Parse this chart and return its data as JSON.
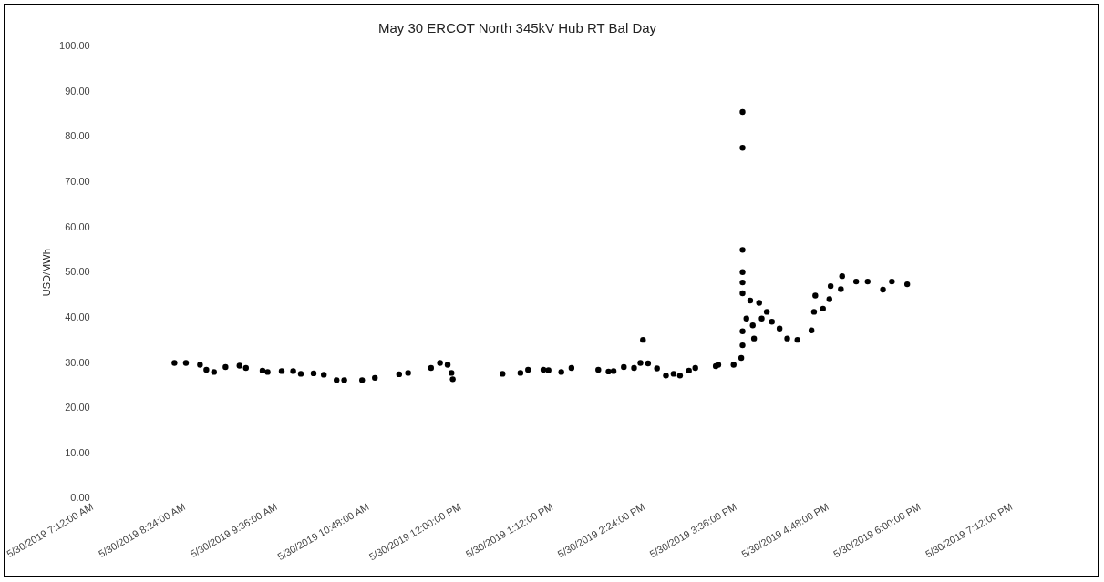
{
  "chart_data": {
    "type": "scatter",
    "title": "May 30 ERCOT North 345kV Hub RT Bal Day",
    "ylabel": "USD/MWh",
    "x": [
      "2019-05-30T08:16",
      "2019-05-30T08:25",
      "2019-05-30T08:36",
      "2019-05-30T08:41",
      "2019-05-30T08:47",
      "2019-05-30T08:56",
      "2019-05-30T09:07",
      "2019-05-30T09:12",
      "2019-05-30T09:25",
      "2019-05-30T09:29",
      "2019-05-30T09:40",
      "2019-05-30T09:49",
      "2019-05-30T09:55",
      "2019-05-30T10:05",
      "2019-05-30T10:13",
      "2019-05-30T10:23",
      "2019-05-30T10:29",
      "2019-05-30T10:43",
      "2019-05-30T10:53",
      "2019-05-30T11:12",
      "2019-05-30T11:19",
      "2019-05-30T11:37",
      "2019-05-30T11:44",
      "2019-05-30T11:50",
      "2019-05-30T11:53",
      "2019-05-30T11:54",
      "2019-05-30T12:33",
      "2019-05-30T12:47",
      "2019-05-30T12:53",
      "2019-05-30T13:05",
      "2019-05-30T13:09",
      "2019-05-30T13:19",
      "2019-05-30T13:27",
      "2019-05-30T13:48",
      "2019-05-30T13:56",
      "2019-05-30T14:00",
      "2019-05-30T14:08",
      "2019-05-30T14:16",
      "2019-05-30T14:21",
      "2019-05-30T14:23",
      "2019-05-30T14:27",
      "2019-05-30T14:34",
      "2019-05-30T14:41",
      "2019-05-30T14:47",
      "2019-05-30T14:52",
      "2019-05-30T14:59",
      "2019-05-30T15:04",
      "2019-05-30T15:20",
      "2019-05-30T15:22",
      "2019-05-30T15:34",
      "2019-05-30T15:40",
      "2019-05-30T15:41",
      "2019-05-30T15:41",
      "2019-05-30T15:41",
      "2019-05-30T15:41",
      "2019-05-30T15:41",
      "2019-05-30T15:41",
      "2019-05-30T15:41",
      "2019-05-30T15:41",
      "2019-05-30T15:47",
      "2019-05-30T15:54",
      "2019-05-30T15:44",
      "2019-05-30T15:49",
      "2019-05-30T15:50",
      "2019-05-30T15:56",
      "2019-05-30T16:00",
      "2019-05-30T16:04",
      "2019-05-30T16:10",
      "2019-05-30T16:16",
      "2019-05-30T16:24",
      "2019-05-30T16:35",
      "2019-05-30T16:37",
      "2019-05-30T16:38",
      "2019-05-30T16:44",
      "2019-05-30T16:49",
      "2019-05-30T16:50",
      "2019-05-30T16:58",
      "2019-05-30T16:59",
      "2019-05-30T17:10",
      "2019-05-30T17:19",
      "2019-05-30T17:31",
      "2019-05-30T17:38",
      "2019-05-30T17:50"
    ],
    "series": [
      {
        "color": "#000000",
        "values": [
          30.0,
          30.0,
          29.6,
          28.5,
          28.0,
          29.1,
          29.4,
          28.9,
          28.3,
          28.0,
          28.2,
          28.2,
          27.6,
          27.7,
          27.4,
          26.2,
          26.2,
          26.2,
          26.7,
          27.5,
          27.8,
          28.9,
          30.0,
          29.6,
          27.8,
          26.4,
          27.6,
          27.8,
          28.5,
          28.5,
          28.4,
          28.0,
          28.9,
          28.5,
          28.1,
          28.2,
          29.1,
          28.9,
          30.0,
          35.1,
          29.9,
          28.8,
          27.2,
          27.6,
          27.2,
          28.3,
          28.9,
          29.3,
          29.6,
          29.6,
          31.1,
          33.9,
          37.0,
          85.5,
          77.6,
          55.0,
          50.1,
          47.8,
          45.4,
          43.8,
          43.3,
          39.8,
          38.3,
          35.4,
          39.8,
          41.3,
          39.1,
          37.6,
          35.4,
          35.1,
          37.2,
          41.3,
          44.9,
          42.0,
          44.1,
          47.0,
          46.3,
          49.2,
          48.0,
          48.0,
          46.2,
          48.0,
          47.4
        ]
      }
    ],
    "marker": "circle",
    "xlim": [
      "2019-05-30T07:12",
      "2019-05-30T19:12"
    ],
    "xticks": [
      {
        "value": "2019-05-30T07:12",
        "label": "5/30/2019 7:12:00 AM"
      },
      {
        "value": "2019-05-30T08:24",
        "label": "5/30/2019 8:24:00 AM"
      },
      {
        "value": "2019-05-30T09:36",
        "label": "5/30/2019 9:36:00 AM"
      },
      {
        "value": "2019-05-30T10:48",
        "label": "5/30/2019 10:48:00 AM"
      },
      {
        "value": "2019-05-30T12:00",
        "label": "5/30/2019 12:00:00 PM"
      },
      {
        "value": "2019-05-30T13:12",
        "label": "5/30/2019 1:12:00 PM"
      },
      {
        "value": "2019-05-30T14:24",
        "label": "5/30/2019 2:24:00 PM"
      },
      {
        "value": "2019-05-30T15:36",
        "label": "5/30/2019 3:36:00 PM"
      },
      {
        "value": "2019-05-30T16:48",
        "label": "5/30/2019 4:48:00 PM"
      },
      {
        "value": "2019-05-30T18:00",
        "label": "5/30/2019 6:00:00 PM"
      },
      {
        "value": "2019-05-30T19:12",
        "label": "5/30/2019 7:12:00 PM"
      }
    ],
    "ylim": [
      0,
      100
    ],
    "yticks": [
      {
        "value": 0,
        "label": "0.00"
      },
      {
        "value": 10,
        "label": "10.00"
      },
      {
        "value": 20,
        "label": "20.00"
      },
      {
        "value": 30,
        "label": "30.00"
      },
      {
        "value": 40,
        "label": "40.00"
      },
      {
        "value": 50,
        "label": "50.00"
      },
      {
        "value": 60,
        "label": "60.00"
      },
      {
        "value": 70,
        "label": "70.00"
      },
      {
        "value": 80,
        "label": "80.00"
      },
      {
        "value": 90,
        "label": "90.00"
      },
      {
        "value": 100,
        "label": "100.00"
      }
    ]
  }
}
